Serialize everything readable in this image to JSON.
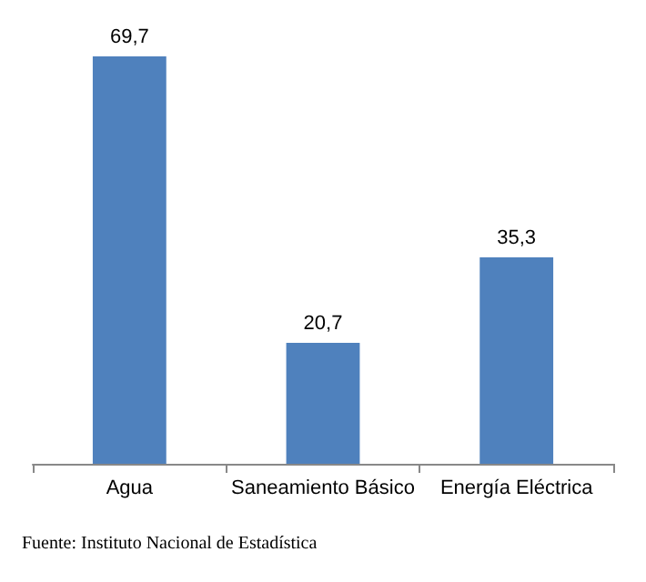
{
  "chart_data": {
    "type": "bar",
    "categories": [
      "Agua",
      "Saneamiento Básico",
      "Energía Eléctrica"
    ],
    "values": [
      69.7,
      20.7,
      35.3
    ],
    "value_labels": [
      "69,7",
      "20,7",
      "35,3"
    ],
    "color": "#4f81bd",
    "annotations": [
      "Fuente: Instituto Nacional de Estadística"
    ]
  }
}
